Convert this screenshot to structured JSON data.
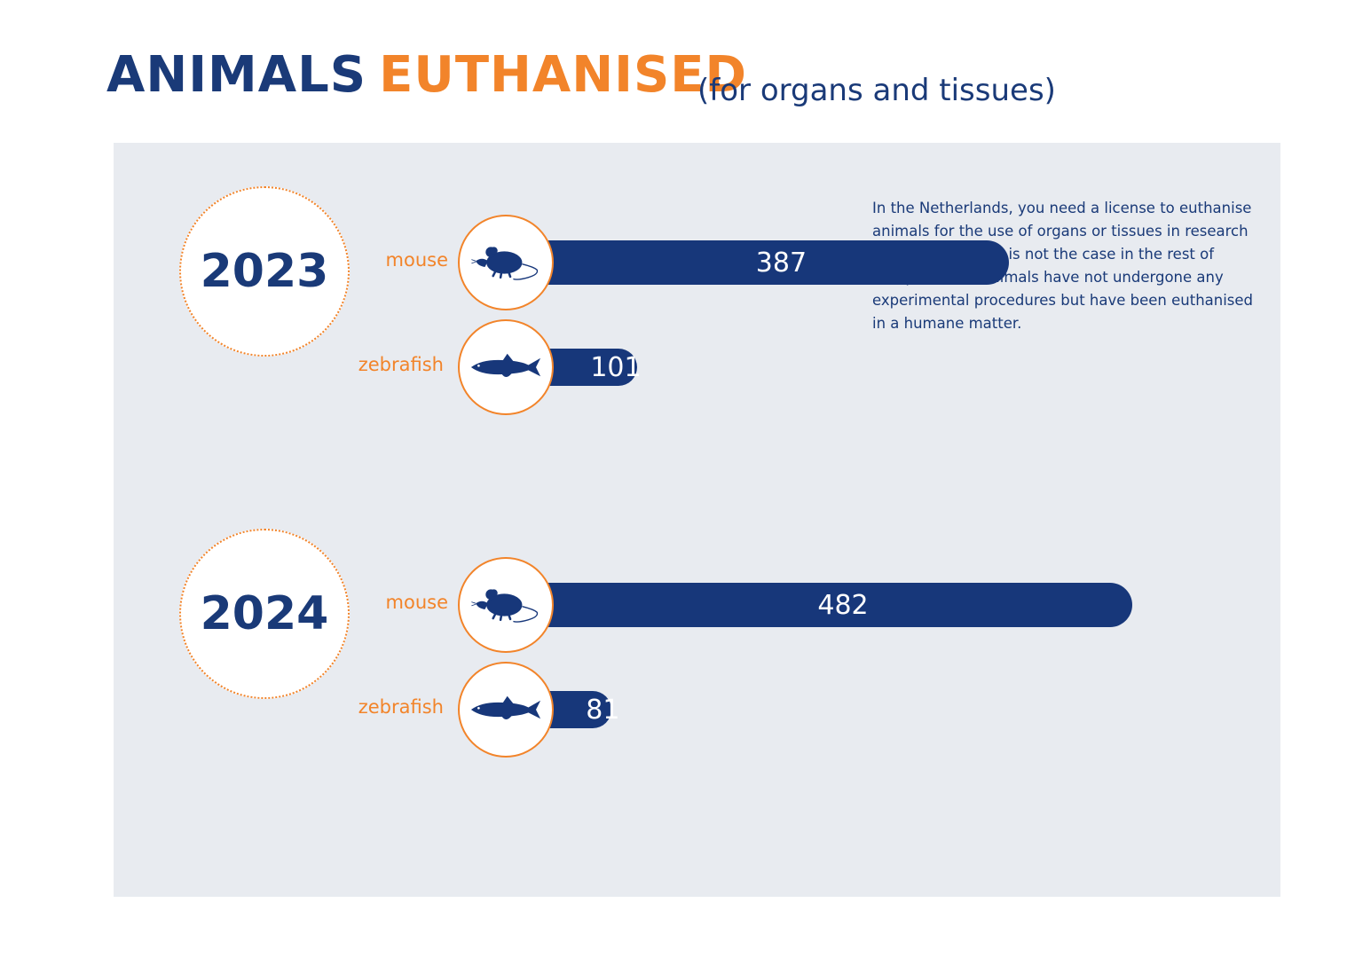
{
  "header": {
    "title_part1": "ANIMALS",
    "title_part2": "EUTHANISED",
    "subtitle": "(for organs and tissues)"
  },
  "note": "In the Netherlands, you need a license to euthanise animals for the use of organs or tissues in research or education. This is not the case in the rest of Europe. These animals have not undergone any experimental procedures but have been euthanised in a humane matter.",
  "colors": {
    "navy": "#17377a",
    "orange": "#f2842a",
    "panel": "#e8ebf0"
  },
  "icons": {
    "mouse": "mouse-icon",
    "zebrafish": "zebrafish-icon"
  },
  "chart_data": {
    "type": "bar",
    "orientation": "horizontal",
    "groups": [
      {
        "year": "2023",
        "items": [
          {
            "label": "mouse",
            "value": 387
          },
          {
            "label": "zebrafish",
            "value": 101
          }
        ]
      },
      {
        "year": "2024",
        "items": [
          {
            "label": "mouse",
            "value": 482
          },
          {
            "label": "zebrafish",
            "value": 81
          }
        ]
      }
    ]
  }
}
